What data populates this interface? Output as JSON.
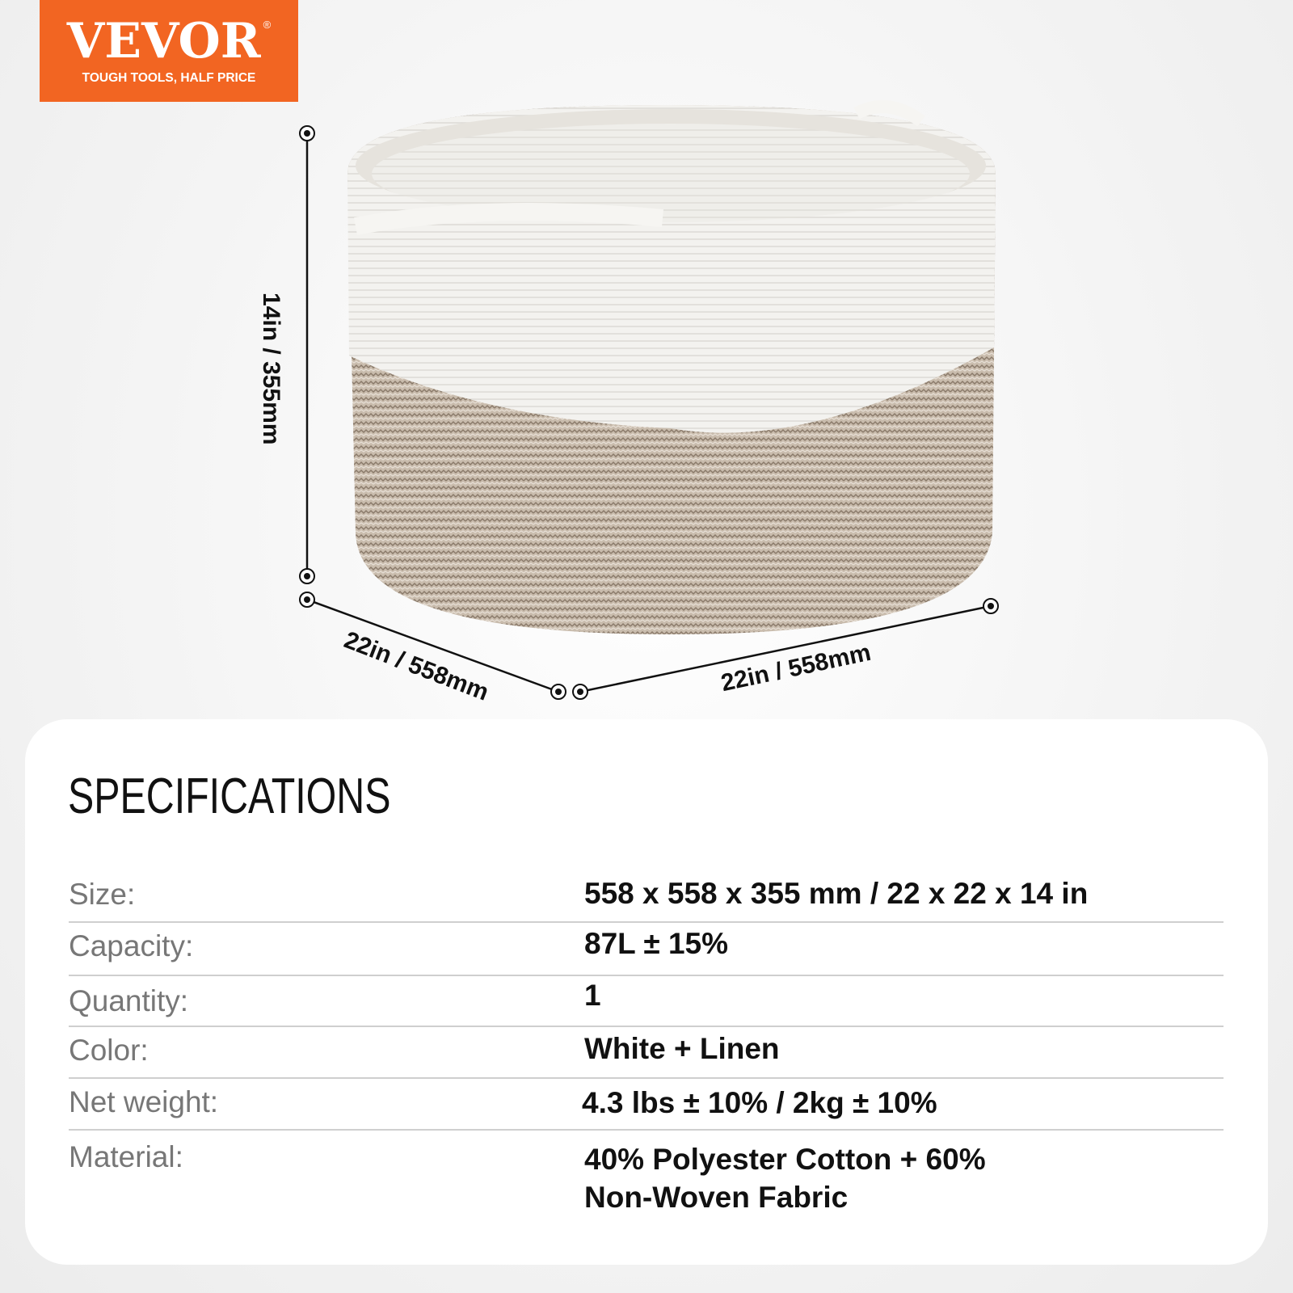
{
  "logo": {
    "brand": "VEVOR",
    "registered": "®",
    "tagline": "TOUGH TOOLS, HALF PRICE",
    "color": "#f26522"
  },
  "dimensions": {
    "height": "14in / 355mm",
    "depth": "22in / 558mm",
    "width": "22in / 558mm"
  },
  "specifications": {
    "title": "SPECIFICATIONS",
    "rows": [
      {
        "label": "Size:",
        "value": "558 x 558 x 355 mm / 22 x 22 x 14 in"
      },
      {
        "label": "Capacity:",
        "value": "87L ± 15%"
      },
      {
        "label": "Quantity:",
        "value": "1"
      },
      {
        "label": "Color:",
        "value": "White + Linen"
      },
      {
        "label": "Net weight:",
        "value": "4.3 lbs ± 10% / 2kg ± 10%"
      },
      {
        "label": "Material:",
        "value": "40% Polyester Cotton + 60% Non-Woven Fabric"
      }
    ]
  }
}
